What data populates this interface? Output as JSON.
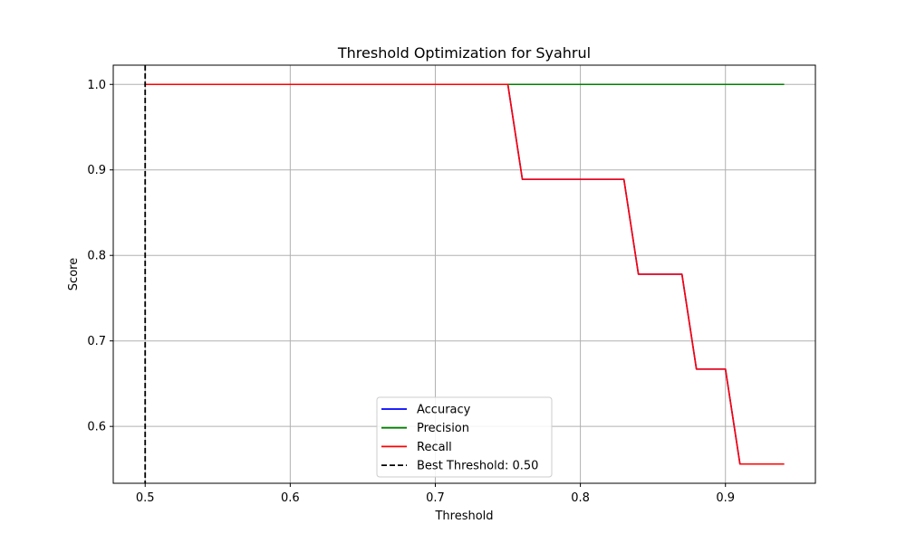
{
  "chart_data": {
    "type": "line",
    "title": "Threshold Optimization for Syahrul",
    "xlabel": "Threshold",
    "ylabel": "Score",
    "xlim": [
      0.478,
      0.962
    ],
    "ylim": [
      0.5335,
      1.0225
    ],
    "xticks": [
      0.5,
      0.6,
      0.7,
      0.8,
      0.9
    ],
    "xtick_labels": [
      "0.5",
      "0.6",
      "0.7",
      "0.8",
      "0.9"
    ],
    "yticks": [
      0.6,
      0.7,
      0.8,
      0.9,
      1.0
    ],
    "ytick_labels": [
      "0.6",
      "0.7",
      "0.8",
      "0.9",
      "1.0"
    ],
    "grid": true,
    "legend_position": "lower-center",
    "x": [
      0.5,
      0.51,
      0.52,
      0.53,
      0.54,
      0.55,
      0.56,
      0.57,
      0.58,
      0.59,
      0.6,
      0.61,
      0.62,
      0.63,
      0.64,
      0.65,
      0.66,
      0.67,
      0.68,
      0.69,
      0.7,
      0.71,
      0.72,
      0.73,
      0.74,
      0.75,
      0.76,
      0.77,
      0.78,
      0.79,
      0.8,
      0.81,
      0.82,
      0.83,
      0.84,
      0.85,
      0.86,
      0.87,
      0.88,
      0.89,
      0.9,
      0.91,
      0.92,
      0.93,
      0.94
    ],
    "series": [
      {
        "name": "Accuracy",
        "color": "#0000ff",
        "values": [
          1.0,
          1.0,
          1.0,
          1.0,
          1.0,
          1.0,
          1.0,
          1.0,
          1.0,
          1.0,
          1.0,
          1.0,
          1.0,
          1.0,
          1.0,
          1.0,
          1.0,
          1.0,
          1.0,
          1.0,
          1.0,
          1.0,
          1.0,
          1.0,
          1.0,
          1.0,
          0.889,
          0.889,
          0.889,
          0.889,
          0.889,
          0.889,
          0.889,
          0.889,
          0.778,
          0.778,
          0.778,
          0.778,
          0.667,
          0.667,
          0.667,
          0.556,
          0.556,
          0.556,
          0.556
        ]
      },
      {
        "name": "Precision",
        "color": "#008000",
        "values": [
          1.0,
          1.0,
          1.0,
          1.0,
          1.0,
          1.0,
          1.0,
          1.0,
          1.0,
          1.0,
          1.0,
          1.0,
          1.0,
          1.0,
          1.0,
          1.0,
          1.0,
          1.0,
          1.0,
          1.0,
          1.0,
          1.0,
          1.0,
          1.0,
          1.0,
          1.0,
          1.0,
          1.0,
          1.0,
          1.0,
          1.0,
          1.0,
          1.0,
          1.0,
          1.0,
          1.0,
          1.0,
          1.0,
          1.0,
          1.0,
          1.0,
          1.0,
          1.0,
          1.0,
          1.0
        ]
      },
      {
        "name": "Recall",
        "color": "#ff0000",
        "values": [
          1.0,
          1.0,
          1.0,
          1.0,
          1.0,
          1.0,
          1.0,
          1.0,
          1.0,
          1.0,
          1.0,
          1.0,
          1.0,
          1.0,
          1.0,
          1.0,
          1.0,
          1.0,
          1.0,
          1.0,
          1.0,
          1.0,
          1.0,
          1.0,
          1.0,
          1.0,
          0.889,
          0.889,
          0.889,
          0.889,
          0.889,
          0.889,
          0.889,
          0.889,
          0.778,
          0.778,
          0.778,
          0.778,
          0.667,
          0.667,
          0.667,
          0.556,
          0.556,
          0.556,
          0.556
        ]
      }
    ],
    "vline": {
      "name": "Best Threshold: 0.50",
      "x": 0.5,
      "color": "#000000",
      "style": "dashed"
    }
  }
}
